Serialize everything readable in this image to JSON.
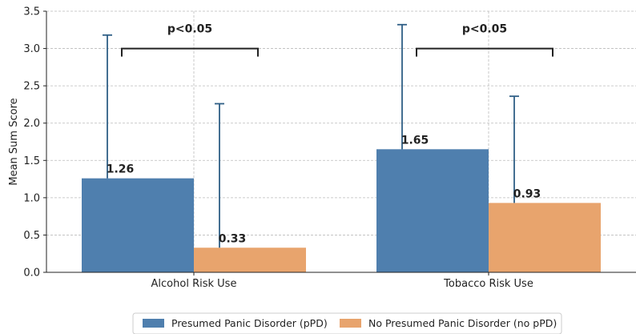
{
  "chart_data": {
    "type": "bar",
    "categories": [
      "Alcohol Risk Use",
      "Tobacco Risk Use"
    ],
    "series": [
      {
        "name": "Presumed Panic Disorder (pPD)",
        "values": [
          1.26,
          1.65
        ],
        "error_upper": [
          3.18,
          3.32
        ],
        "color": "#4f7fae",
        "labels": [
          "1.26",
          "1.65"
        ]
      },
      {
        "name": "No Presumed Panic Disorder (no pPD)",
        "values": [
          0.33,
          0.93
        ],
        "error_upper": [
          2.26,
          2.36
        ],
        "color": "#e8a46d",
        "labels": [
          "0.33",
          "0.93"
        ]
      }
    ],
    "ylabel": "Mean Sum Score",
    "xlabel": "",
    "ylim": [
      0,
      3.5
    ],
    "yticks": [
      "0.0",
      "0.5",
      "1.0",
      "1.5",
      "2.0",
      "2.5",
      "3.0",
      "3.5"
    ],
    "grid": true,
    "legend_position": "bottom-center",
    "annotations": [
      {
        "category_index": 0,
        "text": "p<0.05",
        "bracket_y": 3.0
      },
      {
        "category_index": 1,
        "text": "p<0.05",
        "bracket_y": 3.0
      }
    ],
    "error_color": "#2f5f86",
    "bracket_color": "#222222",
    "grid_color": "#bbbbbb"
  }
}
